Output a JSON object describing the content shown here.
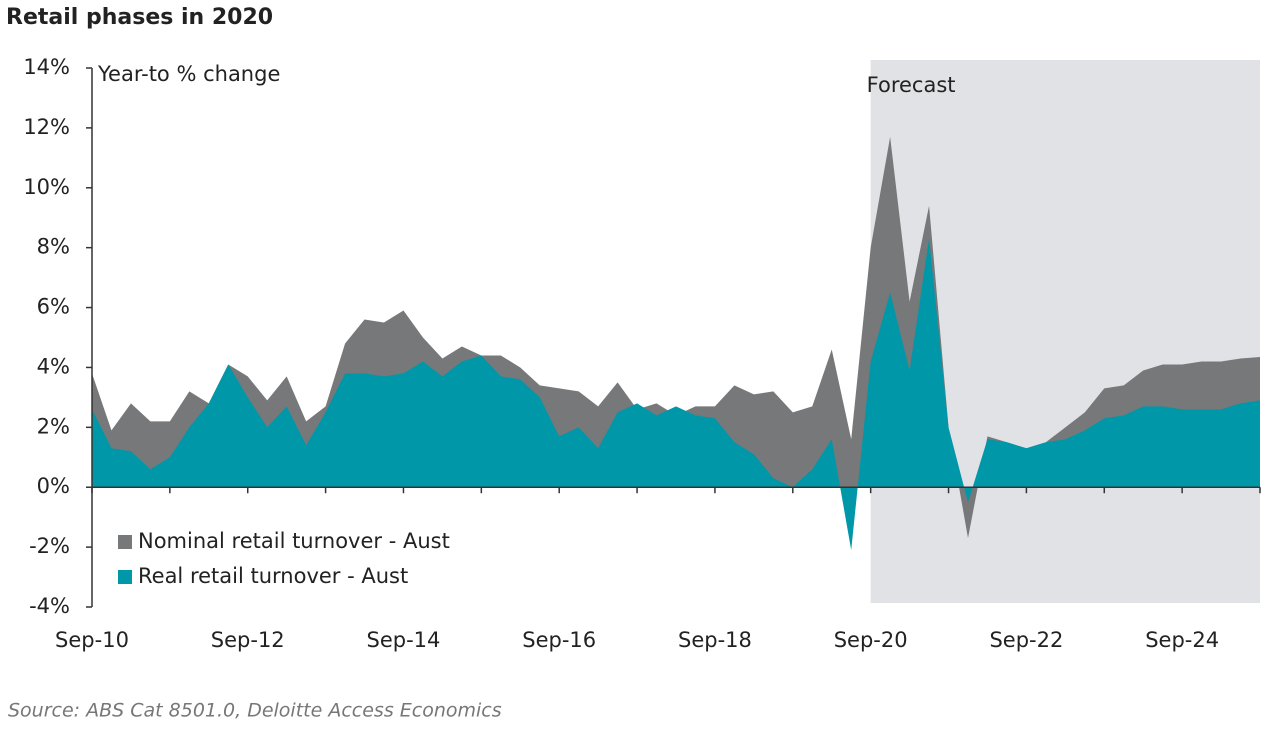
{
  "chart_data": {
    "type": "area",
    "title": "Retail phases in 2020",
    "y_label": "Year-to % change",
    "source": "Source: ABS Cat 8501.0, Deloitte Access Economics",
    "categories": [
      "Sep-10",
      null,
      null,
      null,
      null,
      null,
      null,
      null,
      "Sep-12",
      null,
      null,
      null,
      null,
      null,
      null,
      null,
      "Sep-14",
      null,
      null,
      null,
      null,
      null,
      null,
      null,
      "Sep-16",
      null,
      null,
      null,
      null,
      null,
      null,
      null,
      "Sep-18",
      null,
      null,
      null,
      null,
      null,
      null,
      null,
      "Sep-20",
      null,
      null,
      null,
      null,
      null,
      null,
      null,
      "Sep-22",
      null,
      null,
      null,
      null,
      null,
      null,
      null,
      "Sep-24",
      null,
      null,
      null,
      null
    ],
    "series": [
      {
        "name": "Nominal retail turnover - Aust",
        "color": "#76787a",
        "values": [
          3.8,
          1.9,
          2.8,
          2.2,
          2.2,
          3.2,
          2.8,
          4.1,
          3.7,
          2.9,
          3.7,
          2.2,
          2.7,
          4.8,
          5.6,
          5.5,
          5.9,
          5.0,
          4.3,
          4.7,
          4.4,
          4.4,
          4.0,
          3.4,
          3.3,
          3.2,
          2.7,
          3.5,
          2.6,
          2.8,
          2.4,
          2.7,
          2.7,
          3.4,
          3.1,
          3.2,
          2.5,
          2.7,
          4.6,
          1.6,
          8.0,
          11.7,
          6.2,
          9.4,
          2.0,
          -1.7,
          1.7,
          1.5,
          1.3,
          1.5,
          2.0,
          2.5,
          3.3,
          3.4,
          3.9,
          4.1,
          4.1,
          4.2,
          4.2,
          4.3,
          4.35
        ]
      },
      {
        "name": "Real retail turnover - Aust",
        "color": "#0097a9",
        "values": [
          2.6,
          1.3,
          1.2,
          0.6,
          1.0,
          2.0,
          2.8,
          4.1,
          3.0,
          2.0,
          2.7,
          1.4,
          2.5,
          3.8,
          3.8,
          3.7,
          3.8,
          4.2,
          3.7,
          4.2,
          4.4,
          3.7,
          3.6,
          3.0,
          1.7,
          2.0,
          1.3,
          2.5,
          2.8,
          2.4,
          2.7,
          2.4,
          2.3,
          1.5,
          1.1,
          0.3,
          0.0,
          0.6,
          1.6,
          -2.1,
          4.2,
          6.5,
          3.9,
          8.3,
          2.0,
          -0.5,
          1.6,
          1.5,
          1.3,
          1.5,
          1.6,
          1.9,
          2.3,
          2.4,
          2.7,
          2.7,
          2.6,
          2.6,
          2.6,
          2.8,
          2.9
        ]
      }
    ],
    "ylim": [
      -4,
      14
    ],
    "yticks": [
      {
        "value": -4,
        "label": "-4%"
      },
      {
        "value": -2,
        "label": "-2%"
      },
      {
        "value": 0,
        "label": "0%"
      },
      {
        "value": 2,
        "label": "2%"
      },
      {
        "value": 4,
        "label": "4%"
      },
      {
        "value": 6,
        "label": "6%"
      },
      {
        "value": 8,
        "label": "8%"
      },
      {
        "value": 10,
        "label": "10%"
      },
      {
        "value": 12,
        "label": "12%"
      },
      {
        "value": 14,
        "label": "14%"
      }
    ],
    "forecast": {
      "label": "Forecast",
      "start": "Sep-20"
    },
    "legend": "lower-left"
  }
}
